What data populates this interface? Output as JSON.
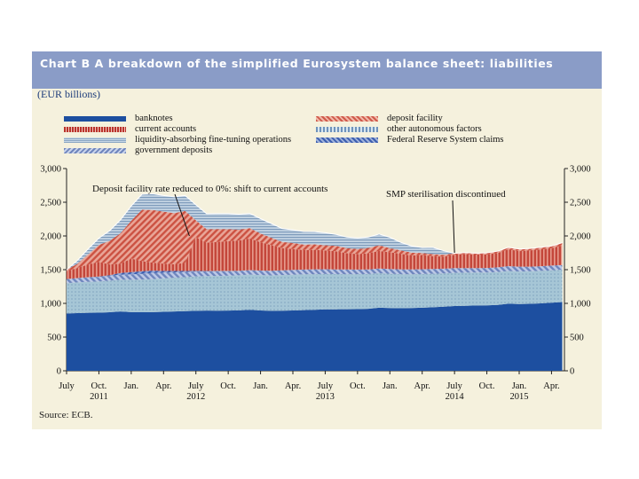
{
  "page": {
    "background": "#ffffff",
    "panel_color": "#f5f1dd",
    "title_bar_color": "#8a9cc7"
  },
  "header": {
    "title": "Chart B A breakdown of the simplified Eurosystem balance sheet: liabilities",
    "units": "(EUR billions)"
  },
  "source": "Source: ECB.",
  "legend": [
    {
      "label": "banknotes",
      "color": "#1d4fa0",
      "pattern": "solid"
    },
    {
      "label": "deposit facility",
      "color": "#cf5a4b",
      "pattern": "hatch"
    },
    {
      "label": "current accounts",
      "color": "#b9342c",
      "pattern": "dotted"
    },
    {
      "label": "other autonomous factors",
      "color": "#a9c4da",
      "pattern": "dotted"
    },
    {
      "label": "liquidity-absorbing fine-tuning operations",
      "color": "#8aa6c3",
      "pattern": "stripes"
    },
    {
      "label": "Federal Reserve System claims",
      "color": "#3d5fb0",
      "pattern": "hatch"
    },
    {
      "label": "government deposits",
      "color": "#8fa3cf",
      "pattern": "hatch"
    }
  ],
  "chart_data": {
    "type": "area",
    "stacked": true,
    "title": "Chart B A breakdown of the simplified Eurosystem balance sheet: liabilities",
    "ylabel": "EUR billions",
    "ylim": [
      0,
      3000
    ],
    "yticks": [
      0,
      500,
      1000,
      1500,
      2000,
      2500,
      3000
    ],
    "ytick_labels": [
      "0",
      "500",
      "1,000",
      "1,500",
      "2,000",
      "2,500",
      "3,000"
    ],
    "x_start": 2011.5,
    "x_end": 2015.35,
    "xtick_labels": [
      {
        "x": 2011.5,
        "label": "July",
        "year": ""
      },
      {
        "x": 2011.75,
        "label": "Oct.",
        "year": "2011"
      },
      {
        "x": 2012.0,
        "label": "Jan.",
        "year": ""
      },
      {
        "x": 2012.25,
        "label": "Apr.",
        "year": ""
      },
      {
        "x": 2012.5,
        "label": "July",
        "year": "2012"
      },
      {
        "x": 2012.75,
        "label": "Oct.",
        "year": ""
      },
      {
        "x": 2013.0,
        "label": "Jan.",
        "year": ""
      },
      {
        "x": 2013.25,
        "label": "Apr.",
        "year": ""
      },
      {
        "x": 2013.5,
        "label": "July",
        "year": "2013"
      },
      {
        "x": 2013.75,
        "label": "Oct.",
        "year": ""
      },
      {
        "x": 2014.0,
        "label": "Jan.",
        "year": ""
      },
      {
        "x": 2014.25,
        "label": "Apr.",
        "year": ""
      },
      {
        "x": 2014.5,
        "label": "July",
        "year": "2014"
      },
      {
        "x": 2014.75,
        "label": "Oct.",
        "year": ""
      },
      {
        "x": 2015.0,
        "label": "Jan.",
        "year": "2015"
      },
      {
        "x": 2015.25,
        "label": "Apr.",
        "year": ""
      }
    ],
    "x": [
      2011.5,
      2011.583,
      2011.667,
      2011.75,
      2011.833,
      2011.917,
      2012.0,
      2012.083,
      2012.167,
      2012.25,
      2012.333,
      2012.417,
      2012.5,
      2012.583,
      2012.667,
      2012.75,
      2012.833,
      2012.917,
      2013.0,
      2013.083,
      2013.167,
      2013.25,
      2013.333,
      2013.417,
      2013.5,
      2013.583,
      2013.667,
      2013.75,
      2013.833,
      2013.917,
      2014.0,
      2014.083,
      2014.167,
      2014.25,
      2014.333,
      2014.417,
      2014.5,
      2014.583,
      2014.667,
      2014.75,
      2014.833,
      2014.917,
      2015.0,
      2015.083,
      2015.167,
      2015.25,
      2015.333
    ],
    "series": [
      {
        "name": "banknotes",
        "values": [
          850,
          855,
          860,
          862,
          868,
          880,
          870,
          868,
          870,
          875,
          880,
          885,
          890,
          893,
          892,
          893,
          896,
          905,
          895,
          890,
          892,
          895,
          900,
          905,
          910,
          912,
          913,
          915,
          920,
          935,
          930,
          928,
          930,
          935,
          942,
          950,
          960,
          965,
          968,
          970,
          978,
          995,
          990,
          993,
          1000,
          1010,
          1020
        ]
      },
      {
        "name": "other autonomous factors",
        "values": [
          450,
          455,
          458,
          462,
          468,
          470,
          480,
          485,
          490,
          495,
          500,
          505,
          510,
          512,
          515,
          518,
          520,
          522,
          525,
          525,
          528,
          530,
          530,
          528,
          525,
          522,
          520,
          518,
          515,
          512,
          510,
          505,
          500,
          500,
          498,
          495,
          492,
          490,
          488,
          487,
          486,
          485,
          483,
          482,
          481,
          480,
          480
        ]
      },
      {
        "name": "government deposits",
        "values": [
          60,
          65,
          70,
          68,
          72,
          75,
          80,
          85,
          90,
          85,
          80,
          75,
          72,
          70,
          70,
          68,
          65,
          65,
          66,
          68,
          70,
          70,
          70,
          72,
          72,
          70,
          70,
          68,
          68,
          70,
          70,
          72,
          72,
          72,
          70,
          70,
          70,
          68,
          68,
          68,
          70,
          72,
          72,
          70,
          70,
          70,
          70
        ]
      },
      {
        "name": "Federal Reserve System claims",
        "values": [
          0,
          0,
          0,
          5,
          10,
          25,
          35,
          40,
          35,
          25,
          20,
          15,
          10,
          5,
          5,
          3,
          2,
          2,
          1,
          1,
          1,
          1,
          1,
          0,
          0,
          0,
          0,
          0,
          0,
          0,
          0,
          0,
          0,
          0,
          0,
          0,
          0,
          0,
          0,
          0,
          0,
          0,
          0,
          0,
          0,
          0,
          0
        ]
      },
      {
        "name": "current accounts",
        "values": [
          120,
          150,
          190,
          220,
          160,
          140,
          200,
          150,
          120,
          110,
          100,
          120,
          500,
          420,
          430,
          440,
          450,
          470,
          420,
          380,
          330,
          310,
          290,
          290,
          280,
          270,
          240,
          230,
          240,
          260,
          250,
          230,
          210,
          210,
          190,
          180,
          200,
          210,
          200,
          200,
          215,
          250,
          230,
          240,
          250,
          260,
          290
        ]
      },
      {
        "name": "deposit facility",
        "values": [
          20,
          60,
          150,
          250,
          350,
          450,
          560,
          760,
          780,
          770,
          760,
          770,
          250,
          200,
          190,
          180,
          160,
          150,
          130,
          110,
          90,
          90,
          80,
          80,
          75,
          80,
          75,
          75,
          80,
          85,
          60,
          50,
          40,
          30,
          30,
          25,
          20,
          20,
          20,
          25,
          25,
          30,
          30,
          30,
          30,
          30,
          40
        ]
      },
      {
        "name": "liquidity-absorbing fine-tuning operations",
        "values": [
          0,
          50,
          80,
          100,
          150,
          200,
          220,
          230,
          240,
          240,
          240,
          230,
          230,
          230,
          230,
          230,
          230,
          220,
          220,
          210,
          200,
          195,
          195,
          190,
          185,
          170,
          165,
          165,
          160,
          165,
          160,
          120,
          100,
          80,
          100,
          60,
          0,
          0,
          0,
          0,
          0,
          0,
          0,
          0,
          0,
          0,
          0
        ]
      }
    ],
    "annotations": [
      {
        "text": "Deposit facility rate reduced to 0%: shift to current accounts",
        "x": 2012.45,
        "y": 2000
      },
      {
        "text": "SMP sterilisation discontinued",
        "x": 2014.5,
        "y": 1750
      }
    ]
  }
}
